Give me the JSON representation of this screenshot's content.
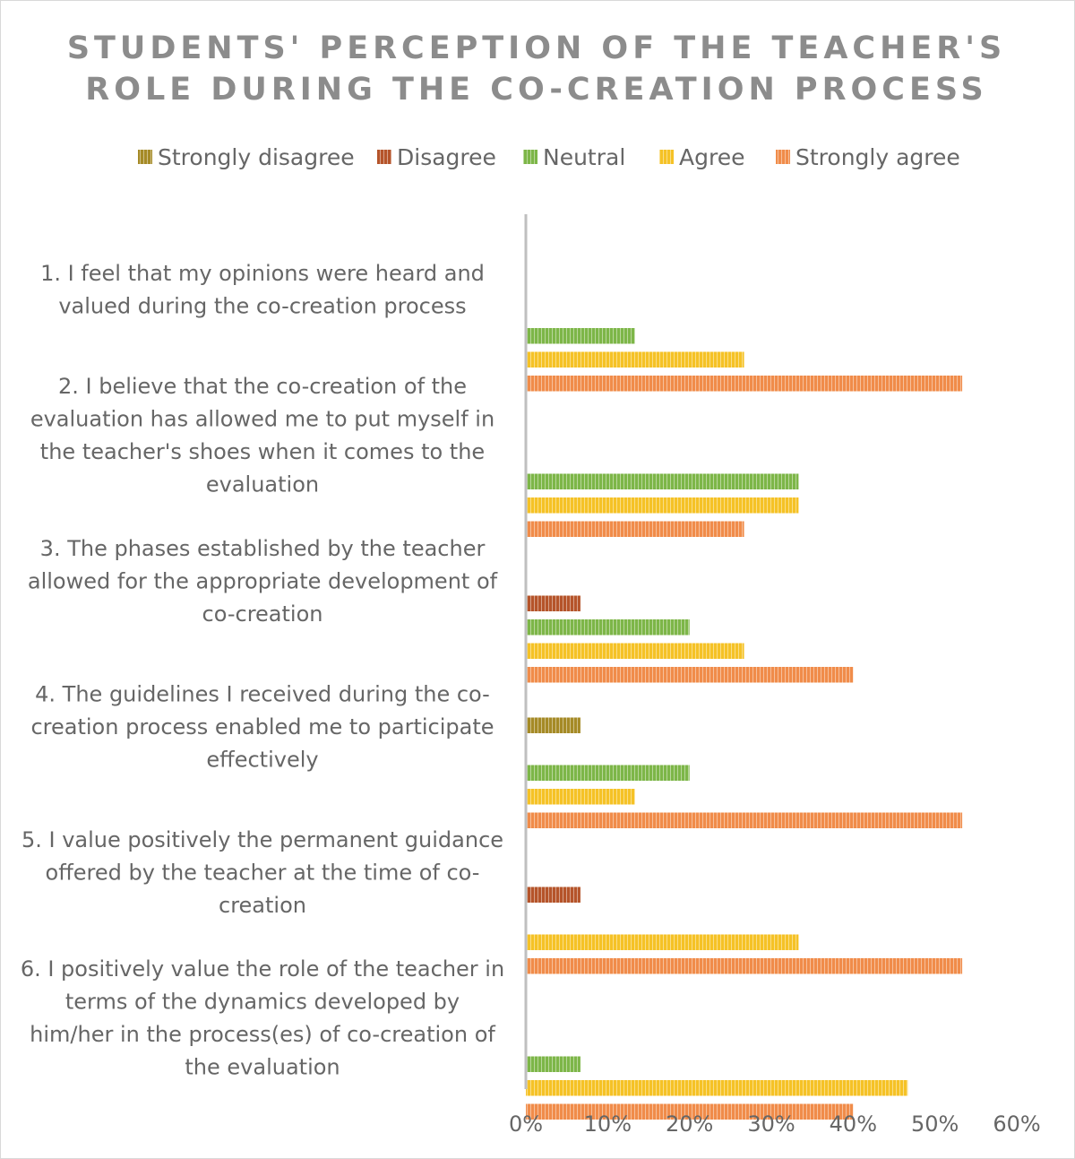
{
  "chart_data": {
    "type": "bar",
    "orientation": "horizontal",
    "title_lines": [
      "STUDENTS' PERCEPTION OF THE TEACHER'S",
      "ROLE DURING THE CO-CREATION PROCESS"
    ],
    "categories": [
      [
        "1. I feel that my opinions were heard and",
        "valued during the co-creation process"
      ],
      [
        "2. I believe that the co-creation of the",
        "evaluation has allowed me to put myself in",
        "the teacher's shoes when it comes to the",
        "evaluation"
      ],
      [
        "3. The phases established by the teacher",
        "allowed for the appropriate development of",
        "co-creation"
      ],
      [
        "4. The guidelines I received during the co-",
        "creation process enabled me to participate",
        "effectively"
      ],
      [
        "5. I value positively the permanent guidance",
        "offered by the teacher at the time of co-",
        "creation"
      ],
      [
        "6. I positively value the role of the teacher in",
        "terms of the dynamics developed by",
        "him/her in the process(es) of co-creation of",
        "the evaluation"
      ]
    ],
    "series": [
      {
        "name": "Strongly disagree",
        "color": "#A58A26",
        "values": [
          0,
          0,
          0,
          6.67,
          0,
          0
        ]
      },
      {
        "name": "Disagree",
        "color": "#B5542A",
        "values": [
          0,
          0,
          6.67,
          0,
          6.67,
          0
        ]
      },
      {
        "name": "Neutral",
        "color": "#7DB648",
        "values": [
          13.33,
          33.33,
          20,
          20,
          0,
          6.67
        ]
      },
      {
        "name": "Agree",
        "color": "#F5C226",
        "values": [
          26.67,
          33.33,
          26.67,
          13.33,
          33.33,
          46.67
        ]
      },
      {
        "name": "Strongly agree",
        "color": "#F08C4A",
        "values": [
          53.33,
          26.67,
          40,
          53.33,
          53.33,
          40
        ]
      }
    ],
    "xlim": [
      0,
      60
    ],
    "xticks": [
      0,
      10,
      20,
      30,
      40,
      50,
      60
    ],
    "tick_suffix": "%",
    "xlabel": "",
    "ylabel": "",
    "grid": false,
    "legend_position": "top"
  }
}
